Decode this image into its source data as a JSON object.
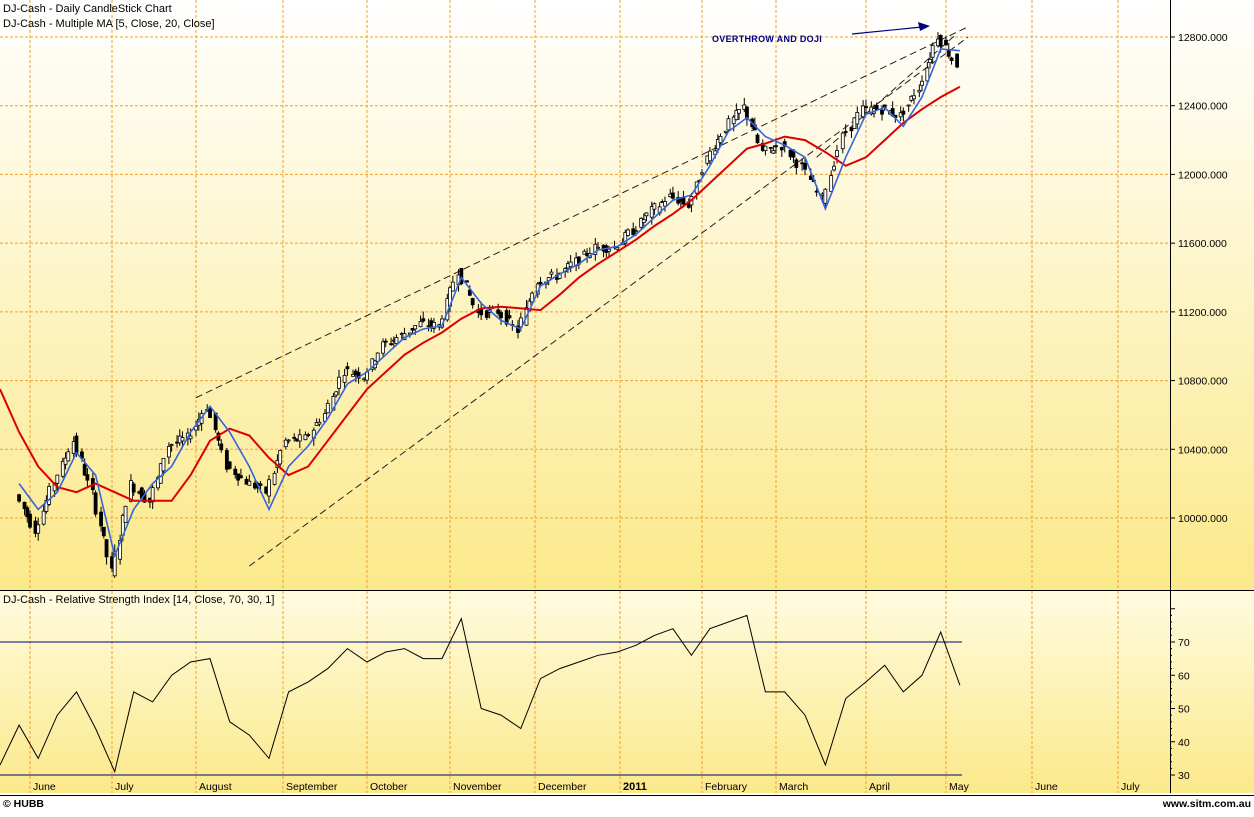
{
  "chart_data": [
    {
      "type": "candlestick",
      "title": "DJ-Cash - Daily CandleStick Chart",
      "subtitle": "DJ-Cash - Multiple MA [5, Close, 20, Close]",
      "ylabel": "",
      "xlabel": "",
      "ylim": [
        9650,
        12950
      ],
      "y_ticks": [
        10000,
        10400,
        10800,
        11200,
        11600,
        12000,
        12400,
        12800
      ],
      "y_tick_labels": [
        "10000.000",
        "10400.000",
        "10800.000",
        "11200.000",
        "11600.000",
        "12000.000",
        "12400.000",
        "12800.000"
      ],
      "grid": true,
      "x_categories": [
        "June",
        "July",
        "August",
        "September",
        "October",
        "November",
        "December",
        "2011",
        "February",
        "March",
        "April",
        "May",
        "June",
        "July"
      ],
      "series": [
        {
          "name": "Close (approx.)",
          "color": "#000000",
          "points": [
            [
              "2010-05-28",
              10136
            ],
            [
              "2010-06-04",
              9931
            ],
            [
              "2010-06-11",
              10211
            ],
            [
              "2010-06-18",
              10450
            ],
            [
              "2010-06-25",
              10143
            ],
            [
              "2010-07-02",
              9686
            ],
            [
              "2010-07-09",
              10198
            ],
            [
              "2010-07-16",
              10097
            ],
            [
              "2010-07-23",
              10424
            ],
            [
              "2010-07-30",
              10465
            ],
            [
              "2010-08-06",
              10653
            ],
            [
              "2010-08-13",
              10303
            ],
            [
              "2010-08-20",
              10213
            ],
            [
              "2010-08-27",
              10150
            ],
            [
              "2010-09-03",
              10447
            ],
            [
              "2010-09-10",
              10462
            ],
            [
              "2010-09-17",
              10607
            ],
            [
              "2010-09-24",
              10860
            ],
            [
              "2010-10-01",
              10829
            ],
            [
              "2010-10-08",
              11006
            ],
            [
              "2010-10-15",
              11062
            ],
            [
              "2010-10-22",
              11132
            ],
            [
              "2010-10-29",
              11118
            ],
            [
              "2010-11-05",
              11444
            ],
            [
              "2010-11-12",
              11192
            ],
            [
              "2010-11-19",
              11203
            ],
            [
              "2010-11-26",
              11092
            ],
            [
              "2010-12-03",
              11382
            ],
            [
              "2010-12-10",
              11410
            ],
            [
              "2010-12-17",
              11491
            ],
            [
              "2010-12-24",
              11573
            ],
            [
              "2010-12-31",
              11577
            ],
            [
              "2011-01-07",
              11674
            ],
            [
              "2011-01-14",
              11787
            ],
            [
              "2011-01-21",
              11871
            ],
            [
              "2011-01-28",
              11823
            ],
            [
              "2011-02-04",
              12092
            ],
            [
              "2011-02-11",
              12273
            ],
            [
              "2011-02-18",
              12391
            ],
            [
              "2011-02-25",
              12130
            ],
            [
              "2011-03-04",
              12169
            ],
            [
              "2011-03-11",
              12044
            ],
            [
              "2011-03-18",
              11858
            ],
            [
              "2011-03-25",
              12220
            ],
            [
              "2011-04-01",
              12376
            ],
            [
              "2011-04-08",
              12380
            ],
            [
              "2011-04-15",
              12341
            ],
            [
              "2011-04-22",
              12505
            ],
            [
              "2011-04-29",
              12810
            ],
            [
              "2011-05-06",
              12638
            ]
          ]
        },
        {
          "name": "MA 5 (Close)",
          "color": "#3366dd",
          "points": [
            [
              "2010-05-28",
              10200
            ],
            [
              "2010-06-04",
              10050
            ],
            [
              "2010-06-11",
              10150
            ],
            [
              "2010-06-18",
              10380
            ],
            [
              "2010-06-25",
              10250
            ],
            [
              "2010-07-02",
              9780
            ],
            [
              "2010-07-09",
              10050
            ],
            [
              "2010-07-16",
              10200
            ],
            [
              "2010-07-23",
              10300
            ],
            [
              "2010-07-30",
              10500
            ],
            [
              "2010-08-06",
              10650
            ],
            [
              "2010-08-13",
              10500
            ],
            [
              "2010-08-20",
              10300
            ],
            [
              "2010-08-27",
              10050
            ],
            [
              "2010-09-03",
              10300
            ],
            [
              "2010-09-10",
              10420
            ],
            [
              "2010-09-17",
              10580
            ],
            [
              "2010-09-24",
              10780
            ],
            [
              "2010-10-01",
              10850
            ],
            [
              "2010-10-08",
              10950
            ],
            [
              "2010-10-15",
              11050
            ],
            [
              "2010-10-22",
              11100
            ],
            [
              "2010-10-29",
              11120
            ],
            [
              "2010-11-05",
              11400
            ],
            [
              "2010-11-12",
              11250
            ],
            [
              "2010-11-19",
              11150
            ],
            [
              "2010-11-26",
              11100
            ],
            [
              "2010-12-03",
              11350
            ],
            [
              "2010-12-10",
              11420
            ],
            [
              "2010-12-17",
              11480
            ],
            [
              "2010-12-24",
              11560
            ],
            [
              "2010-12-31",
              11580
            ],
            [
              "2011-01-07",
              11650
            ],
            [
              "2011-01-14",
              11750
            ],
            [
              "2011-01-21",
              11850
            ],
            [
              "2011-01-28",
              11880
            ],
            [
              "2011-02-04",
              12050
            ],
            [
              "2011-02-11",
              12250
            ],
            [
              "2011-02-18",
              12330
            ],
            [
              "2011-02-25",
              12220
            ],
            [
              "2011-03-04",
              12170
            ],
            [
              "2011-03-11",
              12100
            ],
            [
              "2011-03-18",
              11800
            ],
            [
              "2011-03-25",
              12100
            ],
            [
              "2011-04-01",
              12350
            ],
            [
              "2011-04-08",
              12390
            ],
            [
              "2011-04-15",
              12280
            ],
            [
              "2011-04-22",
              12450
            ],
            [
              "2011-04-29",
              12730
            ],
            [
              "2011-05-06",
              12720
            ]
          ]
        },
        {
          "name": "MA 20 (Close)",
          "color": "#dd0000",
          "points": [
            [
              "2010-05-21",
              10750
            ],
            [
              "2010-05-28",
              10500
            ],
            [
              "2010-06-04",
              10300
            ],
            [
              "2010-06-11",
              10180
            ],
            [
              "2010-06-18",
              10150
            ],
            [
              "2010-06-25",
              10200
            ],
            [
              "2010-07-02",
              10150
            ],
            [
              "2010-07-09",
              10100
            ],
            [
              "2010-07-16",
              10100
            ],
            [
              "2010-07-23",
              10100
            ],
            [
              "2010-07-30",
              10250
            ],
            [
              "2010-08-06",
              10450
            ],
            [
              "2010-08-13",
              10520
            ],
            [
              "2010-08-20",
              10480
            ],
            [
              "2010-08-27",
              10350
            ],
            [
              "2010-09-03",
              10250
            ],
            [
              "2010-09-10",
              10300
            ],
            [
              "2010-09-17",
              10450
            ],
            [
              "2010-09-24",
              10600
            ],
            [
              "2010-10-01",
              10750
            ],
            [
              "2010-10-08",
              10850
            ],
            [
              "2010-10-15",
              10950
            ],
            [
              "2010-10-22",
              11020
            ],
            [
              "2010-10-29",
              11080
            ],
            [
              "2010-11-05",
              11160
            ],
            [
              "2010-11-12",
              11220
            ],
            [
              "2010-11-19",
              11230
            ],
            [
              "2010-11-26",
              11220
            ],
            [
              "2010-12-03",
              11210
            ],
            [
              "2010-12-10",
              11300
            ],
            [
              "2010-12-17",
              11400
            ],
            [
              "2010-12-24",
              11480
            ],
            [
              "2010-12-31",
              11550
            ],
            [
              "2011-01-07",
              11620
            ],
            [
              "2011-01-14",
              11700
            ],
            [
              "2011-01-21",
              11770
            ],
            [
              "2011-01-28",
              11850
            ],
            [
              "2011-02-04",
              11950
            ],
            [
              "2011-02-11",
              12050
            ],
            [
              "2011-02-18",
              12150
            ],
            [
              "2011-02-25",
              12180
            ],
            [
              "2011-03-04",
              12220
            ],
            [
              "2011-03-11",
              12200
            ],
            [
              "2011-03-18",
              12130
            ],
            [
              "2011-03-25",
              12050
            ],
            [
              "2011-04-01",
              12100
            ],
            [
              "2011-04-08",
              12200
            ],
            [
              "2011-04-15",
              12300
            ],
            [
              "2011-04-22",
              12380
            ],
            [
              "2011-04-29",
              12450
            ],
            [
              "2011-05-06",
              12510
            ]
          ]
        }
      ],
      "trendlines": [
        {
          "name": "upper channel line",
          "style": "dashed",
          "from": [
            "2010-08-01",
            10700
          ],
          "to": [
            "2011-05-09",
            12860
          ]
        },
        {
          "name": "lower channel line",
          "style": "dashed",
          "from": [
            "2010-08-20",
            9720
          ],
          "to": [
            "2011-05-09",
            12800
          ]
        },
        {
          "name": "inner wedge line",
          "style": "dashed",
          "from": [
            "2011-03-15",
            12100
          ],
          "to": [
            "2011-05-05",
            12820
          ]
        }
      ],
      "annotations": [
        {
          "text": "OVERTHROW AND DOJI",
          "arrow_to": [
            "2011-04-29",
            12850
          ]
        }
      ]
    },
    {
      "type": "line",
      "title": "DJ-Cash - Relative Strength Index [14, Close, 70, 30, 1]",
      "ylim": [
        28,
        82
      ],
      "y_ticks": [
        30,
        40,
        50,
        60,
        70
      ],
      "y_tick_labels": [
        "30",
        "40",
        "50",
        "60",
        "70"
      ],
      "reference_lines": [
        70,
        30
      ],
      "series": [
        {
          "name": "RSI 14",
          "color": "#000000",
          "points": [
            [
              "2010-05-21",
              33
            ],
            [
              "2010-05-28",
              45
            ],
            [
              "2010-06-04",
              35
            ],
            [
              "2010-06-11",
              48
            ],
            [
              "2010-06-18",
              55
            ],
            [
              "2010-06-25",
              44
            ],
            [
              "2010-07-02",
              31
            ],
            [
              "2010-07-09",
              55
            ],
            [
              "2010-07-16",
              52
            ],
            [
              "2010-07-23",
              60
            ],
            [
              "2010-07-30",
              64
            ],
            [
              "2010-08-06",
              65
            ],
            [
              "2010-08-13",
              46
            ],
            [
              "2010-08-20",
              42
            ],
            [
              "2010-08-27",
              35
            ],
            [
              "2010-09-03",
              55
            ],
            [
              "2010-09-10",
              58
            ],
            [
              "2010-09-17",
              62
            ],
            [
              "2010-09-24",
              68
            ],
            [
              "2010-10-01",
              64
            ],
            [
              "2010-10-08",
              67
            ],
            [
              "2010-10-15",
              68
            ],
            [
              "2010-10-22",
              65
            ],
            [
              "2010-10-29",
              65
            ],
            [
              "2010-11-05",
              77
            ],
            [
              "2010-11-12",
              50
            ],
            [
              "2010-11-19",
              48
            ],
            [
              "2010-11-26",
              44
            ],
            [
              "2010-12-03",
              59
            ],
            [
              "2010-12-10",
              62
            ],
            [
              "2010-12-17",
              64
            ],
            [
              "2010-12-24",
              66
            ],
            [
              "2010-12-31",
              67
            ],
            [
              "2011-01-07",
              69
            ],
            [
              "2011-01-14",
              72
            ],
            [
              "2011-01-21",
              74
            ],
            [
              "2011-01-28",
              66
            ],
            [
              "2011-02-04",
              74
            ],
            [
              "2011-02-11",
              76
            ],
            [
              "2011-02-18",
              78
            ],
            [
              "2011-02-25",
              55
            ],
            [
              "2011-03-04",
              55
            ],
            [
              "2011-03-11",
              48
            ],
            [
              "2011-03-18",
              33
            ],
            [
              "2011-03-25",
              53
            ],
            [
              "2011-04-01",
              58
            ],
            [
              "2011-04-08",
              63
            ],
            [
              "2011-04-15",
              55
            ],
            [
              "2011-04-22",
              60
            ],
            [
              "2011-04-29",
              73
            ],
            [
              "2011-05-06",
              57
            ]
          ]
        }
      ]
    }
  ],
  "header": {
    "chart_title": "DJ-Cash - Daily CandleStick Chart",
    "ma_title": "DJ-Cash - Multiple MA [5, Close, 20, Close]",
    "annotation": "OVERTHROW AND DOJI"
  },
  "price_axis": {
    "labels": [
      "12800.000",
      "12400.000",
      "12000.000",
      "11600.000",
      "11200.000",
      "10800.000",
      "10400.000",
      "10000.000"
    ]
  },
  "rsi_pane": {
    "title": "DJ-Cash - Relative Strength Index [14, Close, 70, 30, 1]",
    "labels": [
      "70",
      "60",
      "50",
      "40",
      "30"
    ]
  },
  "time_axis": {
    "labels": [
      "June",
      "July",
      "August",
      "September",
      "October",
      "November",
      "December",
      "2011",
      "February",
      "March",
      "April",
      "May",
      "June",
      "July"
    ]
  },
  "footer": {
    "left": "© HUBB",
    "right": "www.sitm.com.au"
  },
  "colors": {
    "grid": "#f0a030",
    "ma_fast": "#3366dd",
    "ma_slow": "#dd0000",
    "rsi_line": "#000000",
    "rsi_ref": "#000080",
    "bg_top": "#ffffff",
    "bg_bottom": "#fbe98a"
  }
}
